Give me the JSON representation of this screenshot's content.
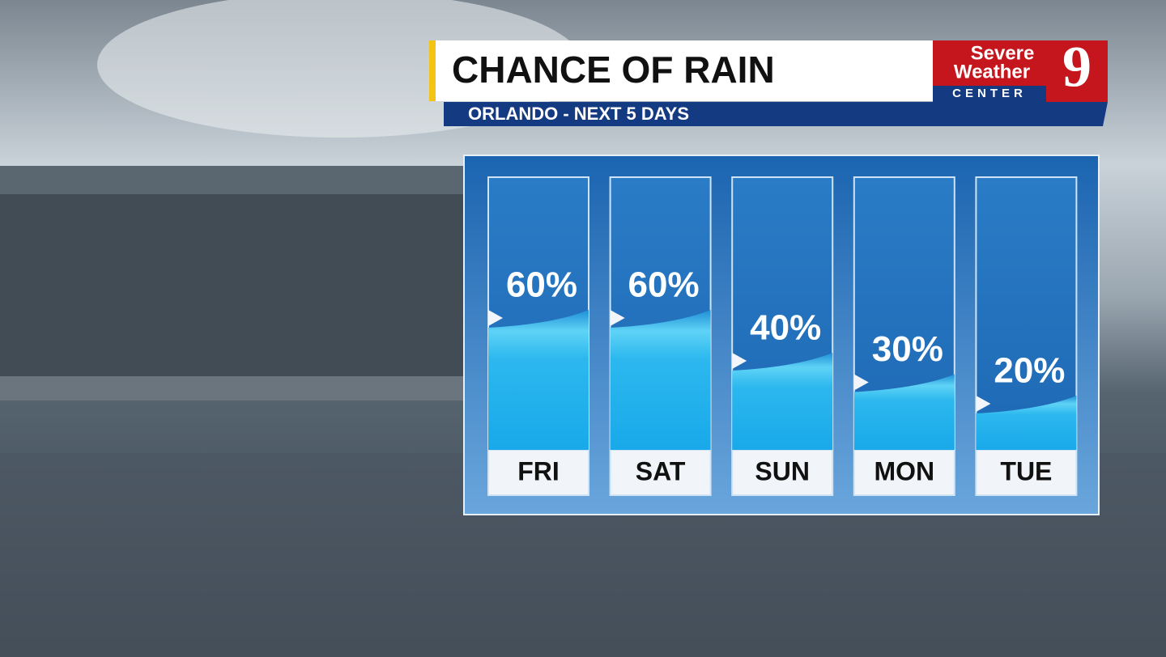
{
  "chart_data": {
    "type": "bar",
    "title": "CHANCE OF RAIN",
    "subtitle": "ORLANDO - NEXT 5 DAYS",
    "logo": {
      "line1": "Severe",
      "line2": "Weather",
      "line3": "CENTER",
      "number": "9"
    },
    "categories": [
      "FRI",
      "SAT",
      "SUN",
      "MON",
      "TUE"
    ],
    "values": [
      60,
      60,
      40,
      30,
      20
    ],
    "value_labels": [
      "60%",
      "60%",
      "40%",
      "30%",
      "20%"
    ],
    "color": "#2fbdf0",
    "ylim": [
      0,
      100
    ]
  }
}
